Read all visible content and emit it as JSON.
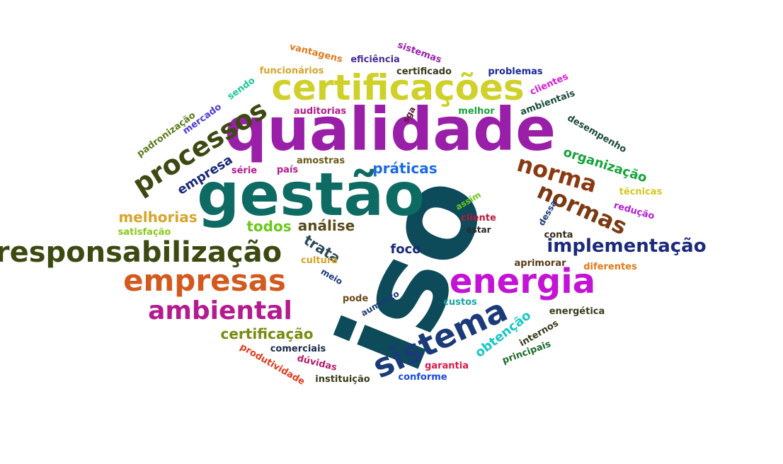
{
  "words": [
    {
      "text": "iso",
      "color": "#0d4a5a"
    },
    {
      "text": "qualidade",
      "color": "#9a1fa8"
    },
    {
      "text": "gestão",
      "color": "#0e6b63"
    },
    {
      "text": "certificações",
      "color": "#cfd12a"
    },
    {
      "text": "sistema",
      "color": "#1a3a78"
    },
    {
      "text": "responsabilização",
      "color": "#3c4a12"
    },
    {
      "text": "energia",
      "color": "#c313d6"
    },
    {
      "text": "empresas",
      "color": "#d35a1e"
    },
    {
      "text": "processos",
      "color": "#3c4a12"
    },
    {
      "text": "ambiental",
      "color": "#b31b8e"
    },
    {
      "text": "norma",
      "color": "#8a3a12"
    },
    {
      "text": "normas",
      "color": "#7a3a12"
    },
    {
      "text": "implementação",
      "color": "#1a2a7a"
    },
    {
      "text": "certificação",
      "color": "#7a8a10"
    },
    {
      "text": "organização",
      "color": "#17a33a"
    },
    {
      "text": "práticas",
      "color": "#1a6ae0"
    },
    {
      "text": "melhorias",
      "color": "#d6a52a"
    },
    {
      "text": "empresa",
      "color": "#1a2a7a"
    },
    {
      "text": "obtenção",
      "color": "#19c6c6"
    },
    {
      "text": "trata",
      "color": "#2a4a5a"
    },
    {
      "text": "análise",
      "color": "#5a4a1a"
    },
    {
      "text": "todos",
      "color": "#6ac81a"
    },
    {
      "text": "foco",
      "color": "#1a2a7a"
    },
    {
      "text": "sistemas",
      "color": "#9a1fa8"
    },
    {
      "text": "vantagens",
      "color": "#e07a1a"
    },
    {
      "text": "eficiência",
      "color": "#4a2a9a"
    },
    {
      "text": "funcionários",
      "color": "#d6a52a"
    },
    {
      "text": "certificado",
      "color": "#3a3a1a"
    },
    {
      "text": "problemas",
      "color": "#1a2a9a"
    },
    {
      "text": "clientes",
      "color": "#d61ad6"
    },
    {
      "text": "sendo",
      "color": "#1ac69a"
    },
    {
      "text": "mercado",
      "color": "#4a3ad6"
    },
    {
      "text": "padronização",
      "color": "#5a7a1a"
    },
    {
      "text": "auditorias",
      "color": "#b31b8e"
    },
    {
      "text": "sga",
      "color": "#5a1a2a"
    },
    {
      "text": "melhor",
      "color": "#1aa33a"
    },
    {
      "text": "ambientais",
      "color": "#1a4a3a"
    },
    {
      "text": "desempenho",
      "color": "#1a4a3a"
    },
    {
      "text": "amostras",
      "color": "#6a5a1a"
    },
    {
      "text": "série",
      "color": "#b31b8e"
    },
    {
      "text": "país",
      "color": "#b31b8e"
    },
    {
      "text": "técnicas",
      "color": "#d6c61a"
    },
    {
      "text": "redução",
      "color": "#b31bd6"
    },
    {
      "text": "assim",
      "color": "#6ac81a"
    },
    {
      "text": "cliente",
      "color": "#b31b3a"
    },
    {
      "text": "estar",
      "color": "#2a2a2a"
    },
    {
      "text": "dessa",
      "color": "#1a3a78"
    },
    {
      "text": "conta",
      "color": "#3a2a1a"
    },
    {
      "text": "satisfação",
      "color": "#8ac81a"
    },
    {
      "text": "cultura",
      "color": "#d6a52a"
    },
    {
      "text": "meio",
      "color": "#1a3a78"
    },
    {
      "text": "aprimorar",
      "color": "#5a3a1a"
    },
    {
      "text": "diferentes",
      "color": "#e07a1a"
    },
    {
      "text": "pode",
      "color": "#6a4a1a"
    },
    {
      "text": "aumento",
      "color": "#1a3a78"
    },
    {
      "text": "custos",
      "color": "#1aa3a3"
    },
    {
      "text": "energética",
      "color": "#3a3a1a"
    },
    {
      "text": "internos",
      "color": "#3a3a1a"
    },
    {
      "text": "principais",
      "color": "#1a6a2a"
    },
    {
      "text": "comerciais",
      "color": "#1a2a4a"
    },
    {
      "text": "produtividade",
      "color": "#e03a1a"
    },
    {
      "text": "dúvidas",
      "color": "#b31b6a"
    },
    {
      "text": "garantia",
      "color": "#d61a4a"
    },
    {
      "text": "instituição",
      "color": "#3a3a1a"
    },
    {
      "text": "conforme",
      "color": "#1a4ae0"
    }
  ]
}
